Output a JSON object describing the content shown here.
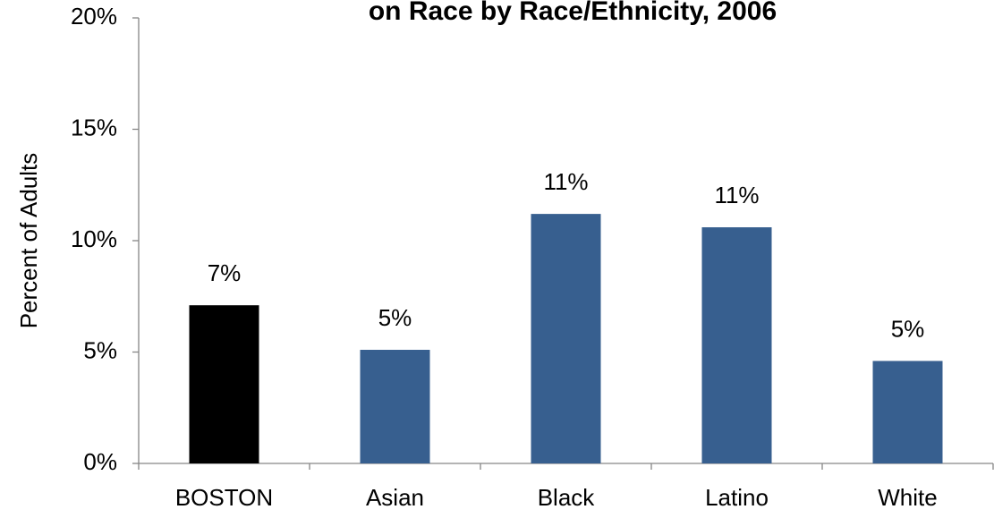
{
  "chart_data": {
    "type": "bar",
    "title": "on Race by Race/Ethnicity, 2006",
    "ylabel": "Percent of Adults",
    "categories": [
      "BOSTON",
      "Asian",
      "Black",
      "Latino",
      "White"
    ],
    "values": [
      7.1,
      5.1,
      11.2,
      10.6,
      4.6
    ],
    "value_labels": [
      "7%",
      "5%",
      "11%",
      "11%",
      "5%"
    ],
    "colors": [
      "#000000",
      "#375f8f",
      "#375f8f",
      "#375f8f",
      "#375f8f"
    ],
    "ylim": [
      0,
      20
    ],
    "yticks": [
      {
        "value": 0,
        "label": "0%"
      },
      {
        "value": 5,
        "label": "5%"
      },
      {
        "value": 10,
        "label": "10%"
      },
      {
        "value": 15,
        "label": "15%"
      },
      {
        "value": 20,
        "label": "20%"
      }
    ],
    "grid": false
  }
}
